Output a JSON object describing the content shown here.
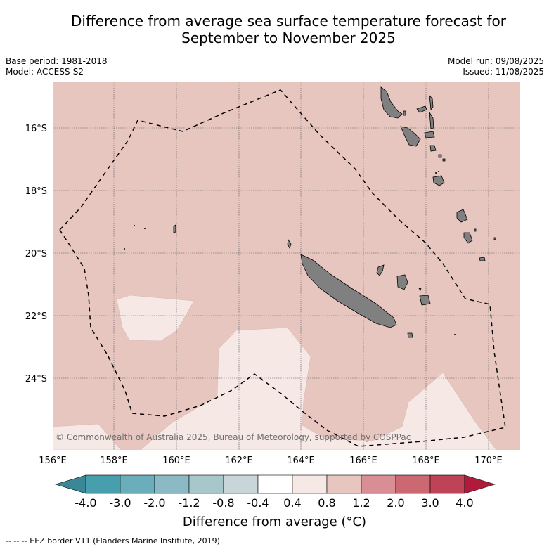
{
  "title_line1": "Difference from average sea surface temperature forecast for",
  "title_line2": "September to November 2025",
  "base_period": "Base period: 1981-2018",
  "model": "Model: ACCESS-S2",
  "model_run": "Model run: 09/08/2025",
  "issued": "Issued: 11/08/2025",
  "copyright": "© Commonwealth of Australia 2025, Bureau of Meteorology, supported by COSPPac",
  "lon_ticks": [
    "156°E",
    "158°E",
    "160°E",
    "162°E",
    "164°E",
    "166°E",
    "168°E",
    "170°E"
  ],
  "lat_ticks": [
    "16°S",
    "18°S",
    "20°S",
    "22°S",
    "24°S"
  ],
  "colorbar": {
    "title": "Difference from average ($^\\circ$C)",
    "title_display": "Difference from average (°C)",
    "labels": [
      "-4.0",
      "-3.0",
      "-2.0",
      "-1.2",
      "-0.8",
      "-0.4",
      "0.4",
      "0.8",
      "1.2",
      "2.0",
      "3.0",
      "4.0"
    ],
    "colors": [
      "#479fae",
      "#6aaebb",
      "#8cbac4",
      "#a8c7cb",
      "#c8d6d9",
      "#ffffff",
      "#f5e8e5",
      "#e8c6c0",
      "#d88e94",
      "#cc6872",
      "#bf4356"
    ],
    "under_color": "#3c8795",
    "over_color": "#b11a3b"
  },
  "field_colors": {
    "background_anomaly": "#e8c6c0",
    "low_anomaly": "#f5e8e5",
    "land": "#808080"
  },
  "footnote": "-- -- -- EEZ border V11 (Flanders Marine Institute, 2019)."
}
